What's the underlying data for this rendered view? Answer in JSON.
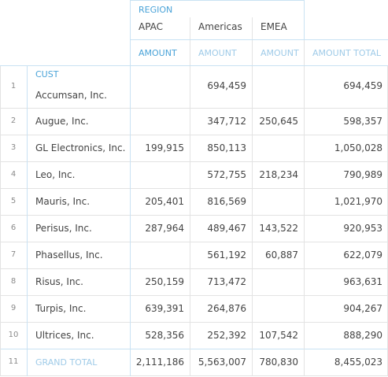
{
  "pivot": {
    "column_dimension": "REGION",
    "row_dimension": "CUST",
    "regions": [
      "APAC",
      "Americas",
      "EMEA"
    ],
    "measure_label": "AMOUNT",
    "total_label": "AMOUNT TOTAL",
    "grand_total_label": "GRAND TOTAL",
    "rows": [
      {
        "n": "1",
        "customer": "Accumsan, Inc.",
        "apac": "",
        "americas": "694,459",
        "emea": "",
        "total": "694,459"
      },
      {
        "n": "2",
        "customer": "Augue, Inc.",
        "apac": "",
        "americas": "347,712",
        "emea": "250,645",
        "total": "598,357"
      },
      {
        "n": "3",
        "customer": "GL Electronics, Inc.",
        "apac": "199,915",
        "americas": "850,113",
        "emea": "",
        "total": "1,050,028"
      },
      {
        "n": "4",
        "customer": "Leo, Inc.",
        "apac": "",
        "americas": "572,755",
        "emea": "218,234",
        "total": "790,989"
      },
      {
        "n": "5",
        "customer": "Mauris, Inc.",
        "apac": "205,401",
        "americas": "816,569",
        "emea": "",
        "total": "1,021,970"
      },
      {
        "n": "6",
        "customer": "Perisus, Inc.",
        "apac": "287,964",
        "americas": "489,467",
        "emea": "143,522",
        "total": "920,953"
      },
      {
        "n": "7",
        "customer": "Phasellus, Inc.",
        "apac": "",
        "americas": "561,192",
        "emea": "60,887",
        "total": "622,079"
      },
      {
        "n": "8",
        "customer": "Risus, Inc.",
        "apac": "250,159",
        "americas": "713,472",
        "emea": "",
        "total": "963,631"
      },
      {
        "n": "9",
        "customer": "Turpis, Inc.",
        "apac": "639,391",
        "americas": "264,876",
        "emea": "",
        "total": "904,267"
      },
      {
        "n": "10",
        "customer": "Ultrices, Inc.",
        "apac": "528,356",
        "americas": "252,392",
        "emea": "107,542",
        "total": "888,290"
      }
    ],
    "grand_total": {
      "n": "11",
      "apac": "2,111,186",
      "americas": "5,563,007",
      "emea": "780,830",
      "total": "8,455,023"
    }
  }
}
